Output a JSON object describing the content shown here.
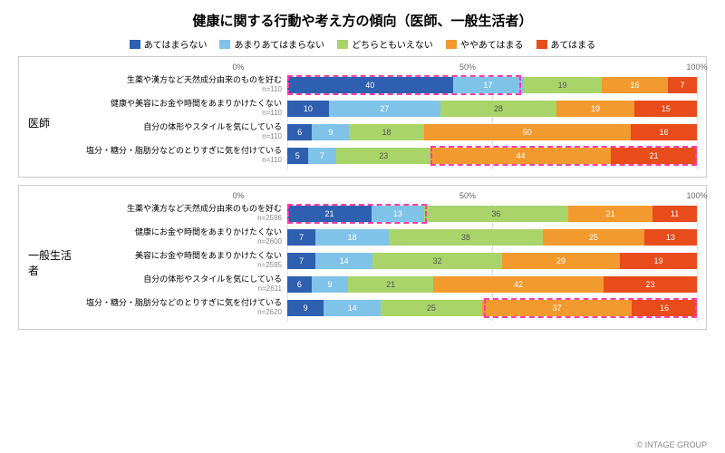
{
  "title": "健康に関する行動や考え方の傾向（医師、一般生活者）",
  "legend": [
    {
      "label": "あてはまらない",
      "color": "#2e5fb0"
    },
    {
      "label": "あまりあてはまらない",
      "color": "#7fc3e8"
    },
    {
      "label": "どちらともいえない",
      "color": "#a9d46a"
    },
    {
      "label": "ややあてはまる",
      "color": "#f39a2e"
    },
    {
      "label": "あてはまる",
      "color": "#e84c1a"
    }
  ],
  "axis": {
    "ticks": [
      0,
      50,
      100
    ],
    "labels": [
      "0%",
      "50%",
      "100%"
    ]
  },
  "grid_color": "#e0e0e0",
  "highlight_color": "#ff3caa",
  "panels": [
    {
      "group": "医師",
      "rows": [
        {
          "label": "生薬や漢方など天然成分由来のものを好む",
          "n": "n=110",
          "values": [
            40,
            17,
            19,
            16,
            7
          ],
          "highlight": {
            "from": 0,
            "to": 57
          }
        },
        {
          "label": "健康や美容にお金や時間をあまりかけたくない",
          "n": "n=110",
          "values": [
            10,
            27,
            28,
            19,
            15
          ]
        },
        {
          "label": "自分の体形やスタイルを気にしている",
          "n": "n=110",
          "values": [
            6,
            9,
            18,
            50,
            16
          ]
        },
        {
          "label": "塩分・糖分・脂肪分などのとりすぎに気を付けている",
          "n": "n=110",
          "values": [
            5,
            7,
            23,
            44,
            21
          ],
          "highlight": {
            "from": 35,
            "to": 100
          }
        }
      ]
    },
    {
      "group": "一般生活者",
      "rows": [
        {
          "label": "生薬や漢方など天然成分由来のものを好む",
          "n": "n=2596",
          "values": [
            21,
            13,
            36,
            21,
            11
          ],
          "highlight": {
            "from": 0,
            "to": 34
          }
        },
        {
          "label": "健康にお金や時間をあまりかけたくない",
          "n": "n=2600",
          "values": [
            7,
            18,
            38,
            25,
            13
          ]
        },
        {
          "label": "美容にお金や時間をあまりかけたくない",
          "n": "n=2595",
          "values": [
            7,
            14,
            32,
            29,
            19
          ]
        },
        {
          "label": "自分の体形やスタイルを気にしている",
          "n": "n=2611",
          "values": [
            6,
            9,
            21,
            42,
            23
          ]
        },
        {
          "label": "塩分・糖分・脂肪分などのとりすぎに気を付けている",
          "n": "n=2620",
          "values": [
            9,
            14,
            25,
            37,
            16
          ],
          "highlight": {
            "from": 48,
            "to": 100
          }
        }
      ]
    }
  ],
  "copyright": "© INTAGE GROUP"
}
